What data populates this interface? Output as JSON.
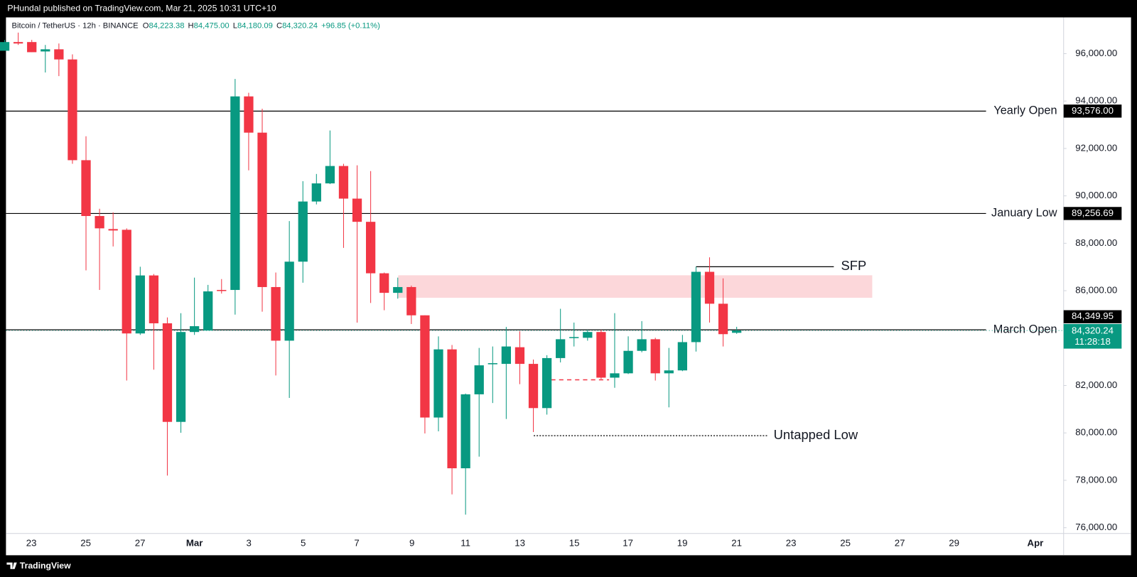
{
  "header": {
    "publisher": "PHundal published on TradingView.com, Mar 21, 2025 10:31 UTC+10",
    "symbol": "Bitcoin / TetherUS · 12h · BINANCE",
    "ohlc": [
      {
        "key": "O",
        "value": "84,223.38"
      },
      {
        "key": "H",
        "value": "84,475.00"
      },
      {
        "key": "L",
        "value": "84,180.09"
      },
      {
        "key": "C",
        "value": "84,320.24"
      }
    ],
    "change": "+96.85 (+0.11%)"
  },
  "footer": {
    "brand": "TradingView"
  },
  "chart_data": {
    "type": "candlestick",
    "open": [
      96122,
      96489,
      96489,
      96092,
      96183,
      95755,
      91505,
      89150,
      88600,
      88569,
      84196,
      86643,
      84624,
      80465,
      84257,
      84318,
      86031,
      86031,
      94196,
      92667,
      86153,
      83891,
      87224,
      89762,
      90526,
      91260,
      89884,
      88905,
      86734,
      85909,
      86153,
      84961,
      80649,
      83524,
      78508,
      81628,
      82912,
      82912,
      83615,
      82912,
      81047,
      83157,
      84013,
      84013,
      84257,
      82331,
      82514,
      83462,
      83952,
      82514,
      82637,
      83830,
      86796,
      85450,
      84223.38
    ],
    "high": [
      96581,
      96887,
      96581,
      96367,
      96428,
      95969,
      92514,
      89456,
      89303,
      88630,
      87010,
      86704,
      84869,
      85052,
      86551,
      86245,
      86490,
      94930,
      94349,
      93676,
      86765,
      88936,
      90618,
      90924,
      92758,
      91352,
      91291,
      91046,
      86765,
      86551,
      86214,
      84961,
      84074,
      83707,
      81659,
      83585,
      83646,
      84471,
      84288,
      83095,
      83279,
      85236,
      84655,
      84349,
      84349,
      85052,
      84074,
      84716,
      84013,
      83585,
      84135,
      87010,
      87407,
      86520,
      84475
    ],
    "low": [
      96122,
      96367,
      96061,
      95205,
      95052,
      91352,
      86857,
      86031,
      87866,
      82209,
      84135,
      82667,
      78202,
      80007,
      84135,
      84349,
      85878,
      84991,
      91077,
      85114,
      82423,
      81475,
      86337,
      89640,
      90496,
      87805,
      84655,
      85481,
      85175,
      85664,
      84594,
      79976,
      80068,
      77407,
      76551,
      78997,
      81261,
      80588,
      82056,
      80037,
      80772,
      82973,
      83646,
      83891,
      82270,
      81903,
      82484,
      83401,
      82209,
      81078,
      82606,
      83432,
      84655,
      83646,
      84180.09
    ],
    "close": [
      96489,
      96428,
      96061,
      96183,
      95755,
      91505,
      89150,
      88630,
      88539,
      84196,
      86643,
      84624,
      80465,
      84257,
      84502,
      85970,
      86000,
      94196,
      92667,
      86153,
      83891,
      87224,
      89762,
      90526,
      91260,
      89884,
      88905,
      86734,
      85909,
      86153,
      84961,
      80649,
      83524,
      78508,
      81628,
      82851,
      82942,
      83646,
      82912,
      81047,
      83157,
      83952,
      84044,
      84257,
      82331,
      82514,
      83462,
      83952,
      82514,
      82637,
      83830,
      86796,
      85450,
      84166,
      84320.24
    ],
    "up_color": "#089981",
    "down_color": "#f23645",
    "ylim": [
      75756,
      97529
    ],
    "yticks": [
      {
        "value": 76000,
        "label": "76,000.00"
      },
      {
        "value": 78000,
        "label": "78,000.00"
      },
      {
        "value": 80000,
        "label": "80,000.00"
      },
      {
        "value": 82000,
        "label": "82,000.00"
      },
      {
        "value": 84000,
        "label": "84,000.00"
      },
      {
        "value": 86000,
        "label": "86,000.00"
      },
      {
        "value": 88000,
        "label": "88,000.00"
      },
      {
        "value": 90000,
        "label": "90,000.00"
      },
      {
        "value": 92000,
        "label": "92,000.00"
      },
      {
        "value": 94000,
        "label": "94,000.00"
      },
      {
        "value": 96000,
        "label": "96,000.00"
      }
    ],
    "xtick_labels": [
      "23",
      "25",
      "27",
      "Mar",
      "3",
      "5",
      "7",
      "9",
      "11",
      "13",
      "15",
      "17",
      "19",
      "21",
      "23",
      "25",
      "27",
      "29",
      "Apr"
    ],
    "levels": [
      {
        "name": "Yearly Open",
        "value": 93576,
        "label": "93,576.00"
      },
      {
        "name": "January Low",
        "value": 89256.69,
        "label": "89,256.69"
      },
      {
        "name": "March Open",
        "value": 84349.95,
        "label": "84,349.95"
      }
    ],
    "last_price": {
      "value": 84320.24,
      "label": "84,320.24",
      "countdown": "11:28:18"
    },
    "zone": [
      85700,
      86650
    ],
    "annotations": [
      {
        "text": "SFP",
        "value": 87010
      },
      {
        "text": "Untapped Low",
        "value": 79884
      }
    ],
    "dashed_levels": [
      82240
    ]
  }
}
